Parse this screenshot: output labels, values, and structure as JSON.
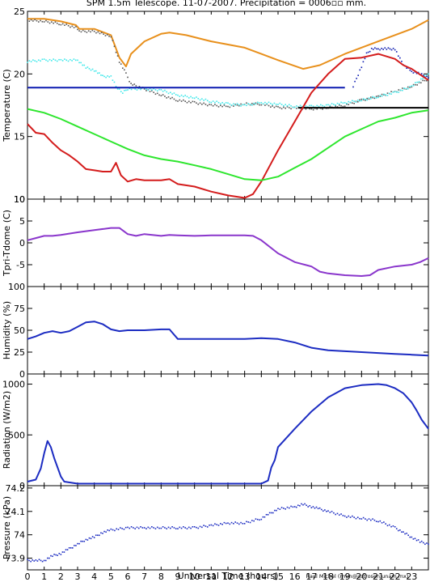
{
  "title": "SPM 1.5m Telescope. 11-07-2007. Precipitation = 0006▫▫ mm.",
  "xlabel": "Universal Time (hours)",
  "credit": "Raul Michel (rmm@astrosen.unam.mx)",
  "colors": {
    "orange": "#e8901c",
    "cyan": "#3ee8ea",
    "gray": "#555555",
    "navy": "#0b1ab0",
    "red": "#d41c1c",
    "green": "#2ee62e",
    "purple": "#8a36cc",
    "blue": "#1c2cc2",
    "black": "#000000"
  },
  "chart_data": [
    {
      "type": "line",
      "ylabel": "Temperature (C)",
      "xlim": [
        0,
        24
      ],
      "ylim": [
        10,
        25
      ],
      "yticks": [
        10,
        15,
        20,
        25
      ],
      "xticks": [
        0,
        1,
        2,
        3,
        4,
        5,
        6,
        7,
        8,
        9,
        10,
        11,
        12,
        13,
        14,
        15,
        16,
        17,
        18,
        19,
        20,
        21,
        22,
        23
      ],
      "series": [
        {
          "color": "orange",
          "style": "line",
          "x": [
            0,
            1,
            2,
            2.9,
            3.1,
            4,
            5,
            5.5,
            5.9,
            6.2,
            7,
            8,
            8.5,
            9.5,
            11,
            13,
            14,
            15,
            16.5,
            17.5,
            19,
            21,
            23,
            24
          ],
          "y": [
            24.4,
            24.4,
            24.2,
            23.9,
            23.6,
            23.6,
            23.1,
            21.3,
            20.6,
            21.6,
            22.6,
            23.2,
            23.3,
            23.1,
            22.6,
            22.1,
            21.6,
            21.1,
            20.4,
            20.7,
            21.6,
            22.6,
            23.6,
            24.3
          ]
        },
        {
          "color": "gray",
          "style": "dots",
          "x": [
            0,
            1,
            2,
            2.9,
            3.1,
            4,
            5,
            5.5,
            5.9,
            6.2,
            7,
            8,
            9,
            10,
            11,
            12,
            13,
            14,
            15,
            16,
            17,
            18,
            19,
            20,
            21,
            22,
            23,
            24
          ],
          "y": [
            24.3,
            24.2,
            24.0,
            23.7,
            23.4,
            23.4,
            23.0,
            21.0,
            20.0,
            19.2,
            18.8,
            18.3,
            17.9,
            17.7,
            17.5,
            17.4,
            17.6,
            17.6,
            17.3,
            17.3,
            17.2,
            17.3,
            17.5,
            17.9,
            18.2,
            18.6,
            19.0,
            19.6
          ]
        },
        {
          "color": "cyan",
          "style": "dots",
          "x": [
            0,
            1,
            2,
            3,
            3.5,
            4,
            4.5,
            5,
            5.3,
            5.7,
            6,
            7,
            8,
            9,
            10,
            11,
            12,
            13,
            14,
            15,
            16,
            17,
            18,
            19,
            20,
            21,
            22,
            23,
            24
          ],
          "y": [
            21.0,
            21.1,
            21.1,
            21.1,
            20.5,
            20.3,
            19.8,
            19.8,
            19.0,
            18.5,
            18.8,
            18.8,
            18.7,
            18.3,
            18.1,
            17.8,
            17.6,
            17.5,
            17.7,
            17.6,
            17.4,
            17.4,
            17.5,
            17.7,
            17.9,
            18.2,
            18.5,
            19.0,
            20.0
          ]
        },
        {
          "color": "navy",
          "style": "line",
          "x": [
            0,
            19
          ],
          "y": [
            18.9,
            18.9
          ]
        },
        {
          "color": "navy",
          "style": "dots",
          "x": [
            19.5,
            20,
            20.3,
            20.6,
            21,
            21.5,
            22,
            22.3,
            22.6,
            23,
            23.5,
            24
          ],
          "y": [
            19.0,
            20.6,
            21.6,
            22.0,
            22.0,
            22.0,
            22.0,
            21.2,
            20.6,
            20.2,
            20.0,
            19.7
          ]
        },
        {
          "color": "black",
          "style": "line",
          "x": [
            16.2,
            24
          ],
          "y": [
            17.3,
            17.3
          ]
        },
        {
          "color": "red",
          "style": "line",
          "x": [
            0,
            0.5,
            1,
            1.5,
            2,
            2.5,
            3,
            3.5,
            4,
            4.5,
            5,
            5.3,
            5.6,
            6,
            6.5,
            7,
            8,
            8.5,
            9,
            10,
            11,
            12,
            13,
            13.5,
            14,
            15,
            16,
            17,
            18,
            19,
            20,
            21,
            22,
            22.5,
            23,
            24
          ],
          "y": [
            16.0,
            15.3,
            15.2,
            14.5,
            13.9,
            13.5,
            13.0,
            12.4,
            12.3,
            12.2,
            12.2,
            12.9,
            11.9,
            11.4,
            11.6,
            11.5,
            11.5,
            11.6,
            11.2,
            11.0,
            10.6,
            10.3,
            10.1,
            10.4,
            11.4,
            13.9,
            16.2,
            18.5,
            20.0,
            21.2,
            21.3,
            21.6,
            21.2,
            20.7,
            20.4,
            19.5
          ]
        },
        {
          "color": "green",
          "style": "line",
          "x": [
            0,
            1,
            2,
            3,
            4,
            5,
            6,
            7,
            8,
            9,
            10,
            11,
            12,
            13,
            14,
            15,
            16,
            17,
            18,
            19,
            20,
            21,
            22,
            23,
            24
          ],
          "y": [
            17.2,
            16.9,
            16.4,
            15.8,
            15.2,
            14.6,
            14.0,
            13.5,
            13.2,
            13.0,
            12.7,
            12.4,
            12.0,
            11.6,
            11.5,
            11.8,
            12.5,
            13.2,
            14.1,
            15.0,
            15.6,
            16.2,
            16.5,
            16.9,
            17.1
          ]
        }
      ]
    },
    {
      "type": "line",
      "ylabel": "Tpri-Tdome (C)",
      "xlim": [
        0,
        24
      ],
      "ylim": [
        -10,
        10
      ],
      "yticks": [
        -5,
        0,
        5,
        10
      ],
      "yticklabels": [
        "-5",
        "0",
        "5",
        "10"
      ],
      "series": [
        {
          "color": "purple",
          "style": "line",
          "x": [
            0,
            0.5,
            1,
            1.5,
            2,
            3,
            4,
            5,
            5.5,
            6,
            6.5,
            7,
            8,
            8.5,
            9,
            10,
            11,
            12,
            13,
            13.5,
            14,
            15,
            16,
            17,
            17.5,
            18,
            19,
            20,
            20.5,
            21,
            22,
            23,
            23.5,
            24
          ],
          "y": [
            0.6,
            1.1,
            1.6,
            1.6,
            1.8,
            2.4,
            2.9,
            3.4,
            3.4,
            2.0,
            1.6,
            2.0,
            1.6,
            1.8,
            1.7,
            1.6,
            1.7,
            1.7,
            1.7,
            1.6,
            0.6,
            -2.4,
            -4.4,
            -5.4,
            -6.6,
            -7.0,
            -7.4,
            -7.6,
            -7.4,
            -6.2,
            -5.4,
            -5.0,
            -4.4,
            -3.5
          ]
        }
      ]
    },
    {
      "type": "line",
      "ylabel": "Humidity (%)",
      "xlim": [
        0,
        24
      ],
      "ylim": [
        0,
        100
      ],
      "yticks": [
        0,
        25,
        50,
        75,
        100
      ],
      "series": [
        {
          "color": "blue",
          "style": "line",
          "x": [
            0,
            0.5,
            1,
            1.5,
            2,
            2.5,
            3,
            3.5,
            4,
            4.5,
            5,
            5.5,
            6,
            7,
            8,
            8.5,
            9,
            10,
            11,
            12,
            13,
            14,
            15,
            16,
            17,
            18,
            19,
            20,
            21,
            22,
            23,
            24
          ],
          "y": [
            40,
            43,
            47,
            49,
            47,
            49,
            54,
            59,
            60,
            57,
            51,
            49,
            50,
            50,
            51,
            51,
            40,
            40,
            40,
            40,
            40,
            41,
            40,
            36,
            30,
            27,
            26,
            25,
            24,
            23,
            22,
            21
          ]
        }
      ]
    },
    {
      "type": "line",
      "ylabel": "Radiation (W/m2)",
      "xlim": [
        0,
        24
      ],
      "ylim": [
        0,
        1100
      ],
      "yticks": [
        0,
        500,
        1000
      ],
      "series": [
        {
          "color": "blue",
          "style": "line",
          "x": [
            0,
            0.5,
            0.8,
            1,
            1.2,
            1.4,
            1.6,
            1.8,
            2,
            2.2,
            3,
            5,
            8,
            10,
            12,
            14,
            14.4,
            14.6,
            14.8,
            15,
            16,
            17,
            18,
            19,
            20,
            21,
            21.5,
            22,
            22.5,
            23,
            23.3,
            23.6,
            24
          ],
          "y": [
            40,
            60,
            170,
            320,
            440,
            380,
            270,
            180,
            90,
            40,
            20,
            20,
            20,
            20,
            20,
            20,
            50,
            180,
            250,
            380,
            560,
            730,
            870,
            960,
            990,
            1000,
            990,
            960,
            910,
            820,
            740,
            650,
            560
          ]
        }
      ]
    },
    {
      "type": "line",
      "ylabel": "Pressure (kPa)",
      "xlim": [
        0,
        24
      ],
      "ylim": [
        73.85,
        74.21
      ],
      "yticks": [
        73.9,
        74,
        74.1,
        74.2
      ],
      "yticklabels": [
        "73.9",
        "74",
        "74.1",
        "74.2"
      ],
      "series": [
        {
          "color": "blue",
          "style": "dots",
          "x": [
            0,
            0.5,
            1,
            1.5,
            2,
            2.5,
            3,
            3.5,
            4,
            4.5,
            5,
            6,
            7,
            8,
            9,
            10,
            11,
            12,
            13,
            14,
            14.5,
            15,
            16,
            16.5,
            17,
            17.5,
            18,
            19,
            20,
            21,
            22,
            22.5,
            23,
            23.5,
            24
          ],
          "y": [
            73.89,
            73.89,
            73.89,
            73.91,
            73.92,
            73.94,
            73.96,
            73.98,
            73.99,
            74.01,
            74.02,
            74.03,
            74.03,
            74.03,
            74.03,
            74.03,
            74.04,
            74.05,
            74.05,
            74.07,
            74.09,
            74.11,
            74.12,
            74.13,
            74.12,
            74.11,
            74.1,
            74.08,
            74.07,
            74.06,
            74.03,
            74.01,
            73.99,
            73.97,
            73.96
          ]
        }
      ]
    }
  ]
}
